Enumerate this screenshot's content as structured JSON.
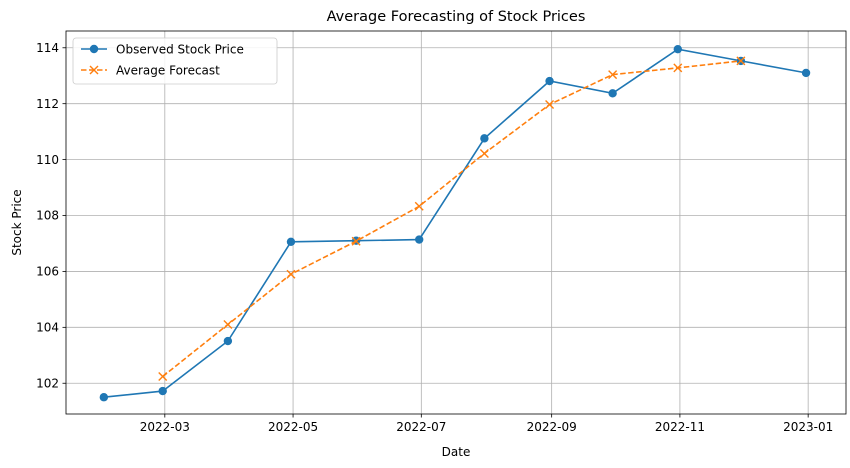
{
  "chart_data": {
    "type": "line",
    "title": "Average Forecasting of Stock Prices",
    "xlabel": "Date",
    "ylabel": "Stock Price",
    "xlim": [
      "2022-01-13",
      "2023-01-19"
    ],
    "ylim": [
      100.9,
      114.6
    ],
    "x_ticks": [
      "2022-03-01",
      "2022-05-01",
      "2022-07-01",
      "2022-09-01",
      "2022-11-01",
      "2023-01-01"
    ],
    "x_tick_labels": [
      "2022-03",
      "2022-05",
      "2022-07",
      "2022-09",
      "2022-11",
      "2023-01"
    ],
    "y_ticks": [
      102,
      104,
      106,
      108,
      110,
      112,
      114
    ],
    "y_tick_labels": [
      "102",
      "104",
      "106",
      "108",
      "110",
      "112",
      "114"
    ],
    "grid": true,
    "legend_position": "top-left",
    "series": [
      {
        "name": "Observed Stock Price",
        "color": "#1f77b4",
        "style": "solid",
        "marker": "circle",
        "x": [
          "2022-01-31",
          "2022-02-28",
          "2022-03-31",
          "2022-04-30",
          "2022-05-31",
          "2022-06-30",
          "2022-07-31",
          "2022-08-31",
          "2022-09-30",
          "2022-10-31",
          "2022-11-30",
          "2022-12-31"
        ],
        "values": [
          101.5,
          101.72,
          103.51,
          107.06,
          107.1,
          107.14,
          110.76,
          112.81,
          112.37,
          113.95,
          113.53,
          113.1
        ]
      },
      {
        "name": "Average Forecast",
        "color": "#ff7f0e",
        "style": "dashed",
        "marker": "x",
        "x": [
          "2022-02-28",
          "2022-03-31",
          "2022-04-30",
          "2022-05-31",
          "2022-06-30",
          "2022-07-31",
          "2022-08-31",
          "2022-09-30",
          "2022-10-31",
          "2022-11-30"
        ],
        "values": [
          102.24,
          104.1,
          105.9,
          107.08,
          108.33,
          110.22,
          111.97,
          113.04,
          113.28,
          113.53
        ]
      }
    ]
  }
}
